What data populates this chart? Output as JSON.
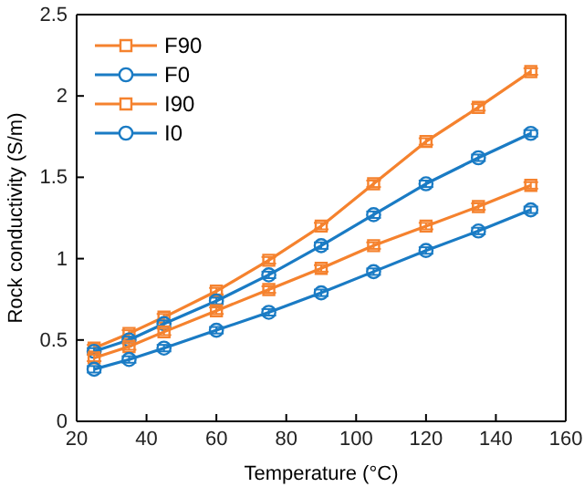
{
  "chart_data": {
    "type": "line",
    "xlabel": "Temperature (°C)",
    "ylabel": "Rock conductivity (S/m)",
    "x": [
      25,
      35,
      45,
      60,
      75,
      90,
      105,
      120,
      135,
      150
    ],
    "xlim": [
      20,
      160
    ],
    "xticks": [
      20,
      40,
      60,
      80,
      100,
      120,
      140,
      160
    ],
    "ylim": [
      0,
      2.5
    ],
    "yticks": [
      0,
      0.5,
      1,
      1.5,
      2,
      2.5
    ],
    "legend": "top left",
    "grid": false,
    "series": [
      {
        "name": "F90",
        "color": "#f5822e",
        "marker": "square",
        "values": [
          0.45,
          0.54,
          0.64,
          0.8,
          0.99,
          1.2,
          1.46,
          1.72,
          1.93,
          2.15
        ],
        "errors": [
          0.02,
          0.02,
          0.02,
          0.02,
          0.02,
          0.02,
          0.02,
          0.02,
          0.02,
          0.02
        ]
      },
      {
        "name": "F0",
        "color": "#1a7bc4",
        "marker": "circle",
        "values": [
          0.43,
          0.5,
          0.6,
          0.74,
          0.9,
          1.08,
          1.27,
          1.46,
          1.62,
          1.77
        ],
        "errors": [
          0.02,
          0.02,
          0.02,
          0.02,
          0.02,
          0.02,
          0.02,
          0.02,
          0.02,
          0.02
        ]
      },
      {
        "name": "I90",
        "color": "#f5822e",
        "marker": "square",
        "values": [
          0.39,
          0.46,
          0.55,
          0.68,
          0.81,
          0.94,
          1.08,
          1.2,
          1.32,
          1.45
        ],
        "errors": [
          0.02,
          0.02,
          0.02,
          0.02,
          0.02,
          0.02,
          0.02,
          0.02,
          0.02,
          0.02
        ]
      },
      {
        "name": "I0",
        "color": "#1a7bc4",
        "marker": "circle",
        "values": [
          0.32,
          0.38,
          0.45,
          0.56,
          0.67,
          0.79,
          0.92,
          1.05,
          1.17,
          1.3
        ],
        "errors": [
          0.02,
          0.02,
          0.02,
          0.02,
          0.02,
          0.02,
          0.02,
          0.02,
          0.02,
          0.02
        ]
      }
    ]
  }
}
